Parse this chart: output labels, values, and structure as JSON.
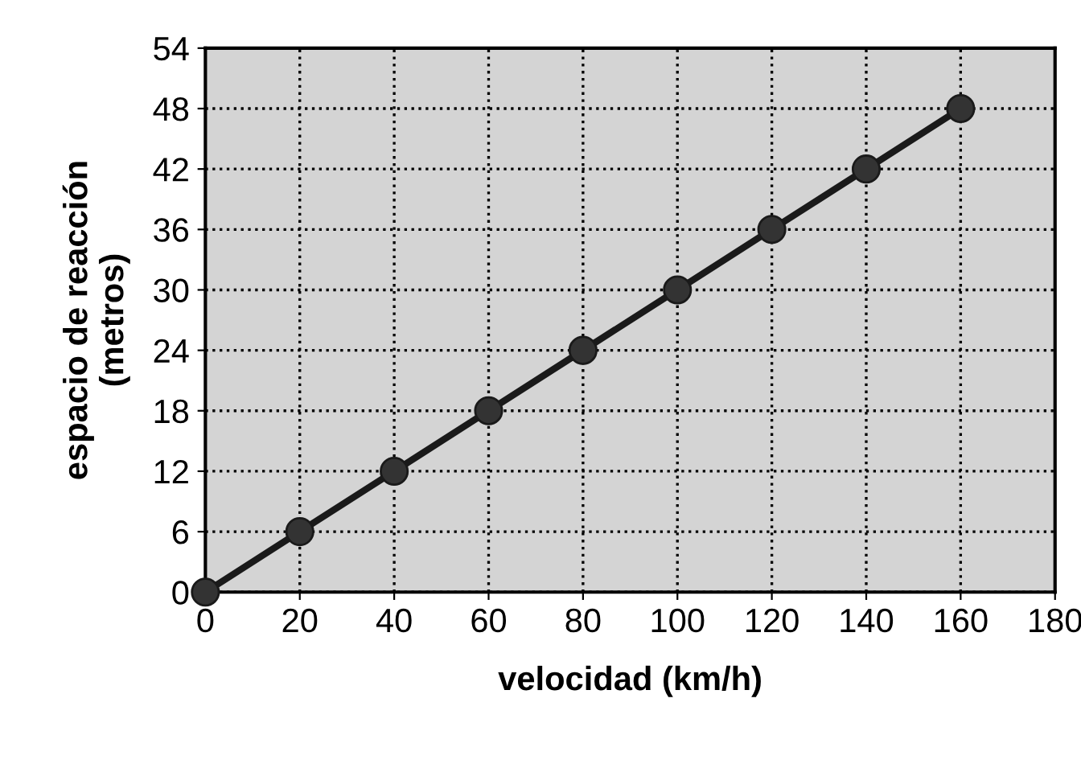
{
  "chart_data": {
    "type": "line",
    "xlabel": "velocidad (km/h)",
    "ylabel": "espacio de reacción\n(metros)",
    "x": [
      0,
      20,
      40,
      60,
      80,
      100,
      120,
      140,
      160
    ],
    "series": [
      {
        "color": "#1a1a1a",
        "values": [
          0,
          6,
          12,
          18,
          24,
          30,
          36,
          42,
          48
        ]
      }
    ],
    "xlim": [
      0,
      180
    ],
    "xticks": [
      0,
      20,
      40,
      60,
      80,
      100,
      120,
      140,
      160,
      180
    ],
    "ylim": [
      0,
      54
    ],
    "yticks": [
      0,
      6,
      12,
      18,
      24,
      30,
      36,
      42,
      48,
      54
    ],
    "grid": true,
    "marker": "circle",
    "line_style": "solid",
    "legend": false
  }
}
